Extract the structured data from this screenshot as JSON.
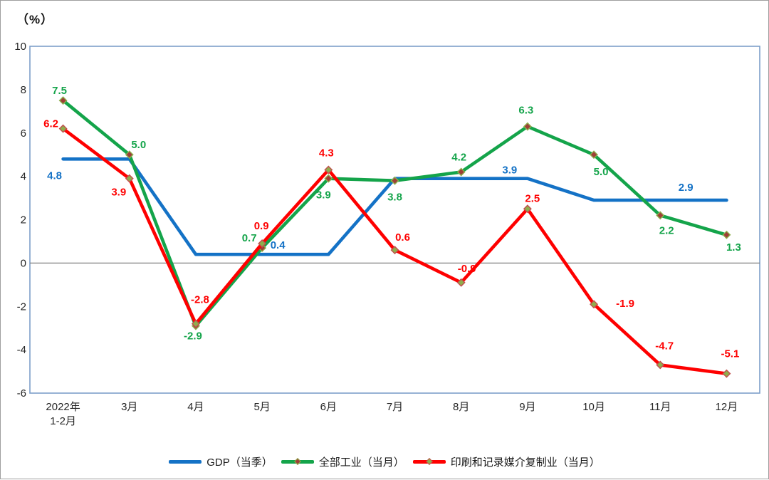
{
  "figure": {
    "background": "#FFFFFF",
    "outer_border_color": "#9E9E9E"
  },
  "chart_data": {
    "type": "line",
    "title": "",
    "ylabel": "（%）",
    "xlabel": "",
    "categories": [
      "2022年1-2月",
      "3月",
      "4月",
      "5月",
      "6月",
      "7月",
      "8月",
      "9月",
      "10月",
      "11月",
      "12月"
    ],
    "x_tick_lines": [
      [
        "2022年",
        "1-2月"
      ],
      [
        "3月"
      ],
      [
        "4月"
      ],
      [
        "5月"
      ],
      [
        "6月"
      ],
      [
        "7月"
      ],
      [
        "8月"
      ],
      [
        "9月"
      ],
      [
        "10月"
      ],
      [
        "11月"
      ],
      [
        "12月"
      ]
    ],
    "y_axis": {
      "min": -6,
      "max": 10,
      "tick_step": 2,
      "tick_labels": [
        "10",
        "8",
        "6",
        "4",
        "2",
        "0",
        "-2",
        "-4",
        "-6"
      ]
    },
    "ylim": [
      -6,
      10
    ],
    "grid": "zero-line-only",
    "legend_position": "bottom",
    "colors": {
      "plot_border": "#7D9EC9",
      "zero_line": "#808080",
      "tick_text": "#262626",
      "legend_text": "#1A1A1A"
    },
    "series": [
      {
        "id": "gdp",
        "name": "GDP（当季）",
        "color": "#1472C6",
        "marker": null,
        "values": [
          4.8,
          4.8,
          0.4,
          0.4,
          0.4,
          3.9,
          3.9,
          3.9,
          2.9,
          2.9,
          2.9
        ],
        "point_labels": [
          {
            "i": 0,
            "dx": -12,
            "dy": 23
          },
          {
            "i": 3,
            "dx": 22,
            "dy": -13
          },
          {
            "i": 7,
            "dx": -25,
            "dy": -12
          },
          {
            "i": 9,
            "dx": 36,
            "dy": -18
          }
        ]
      },
      {
        "id": "industry",
        "name": "全部工业（当月）",
        "color": "#14A44A",
        "marker": {
          "fill": "#9E3F38",
          "stroke": "#8FAE4C"
        },
        "values": [
          7.5,
          5.0,
          -2.9,
          0.7,
          3.9,
          3.8,
          4.2,
          6.3,
          5.0,
          2.2,
          1.3
        ],
        "point_labels": [
          {
            "i": 0,
            "dx": -5,
            "dy": -14
          },
          {
            "i": 1,
            "dx": 13,
            "dy": -14
          },
          {
            "i": 2,
            "dx": -4,
            "dy": 14
          },
          {
            "i": 3,
            "dx": -18,
            "dy": -14
          },
          {
            "i": 4,
            "dx": -7,
            "dy": 23
          },
          {
            "i": 5,
            "dx": 0,
            "dy": 23
          },
          {
            "i": 6,
            "dx": -3,
            "dy": -21
          },
          {
            "i": 7,
            "dx": -2,
            "dy": -23
          },
          {
            "i": 8,
            "dx": 10,
            "dy": 24
          },
          {
            "i": 9,
            "dx": 9,
            "dy": 21
          },
          {
            "i": 10,
            "dx": 10,
            "dy": 17
          }
        ]
      },
      {
        "id": "printing",
        "name": "印刷和记录媒介复制业（当月）",
        "color": "#FE0000",
        "marker": {
          "fill": "#8FAE4C",
          "stroke": "#C0504D"
        },
        "values": [
          6.2,
          3.9,
          -2.8,
          0.9,
          4.3,
          0.6,
          -0.9,
          2.5,
          -1.9,
          -4.7,
          -5.1
        ],
        "point_labels": [
          {
            "i": 0,
            "dx": -17,
            "dy": -7
          },
          {
            "i": 1,
            "dx": -15,
            "dy": 19
          },
          {
            "i": 2,
            "dx": 6,
            "dy": -34
          },
          {
            "i": 3,
            "dx": -1,
            "dy": -25
          },
          {
            "i": 4,
            "dx": -3,
            "dy": -24
          },
          {
            "i": 5,
            "dx": 11,
            "dy": -18
          },
          {
            "i": 6,
            "dx": 8,
            "dy": -20
          },
          {
            "i": 7,
            "dx": 7,
            "dy": -15
          },
          {
            "i": 8,
            "dx": 44,
            "dy": -1
          },
          {
            "i": 9,
            "dx": 6,
            "dy": -27
          },
          {
            "i": 10,
            "dx": 5,
            "dy": -28
          }
        ]
      }
    ]
  }
}
